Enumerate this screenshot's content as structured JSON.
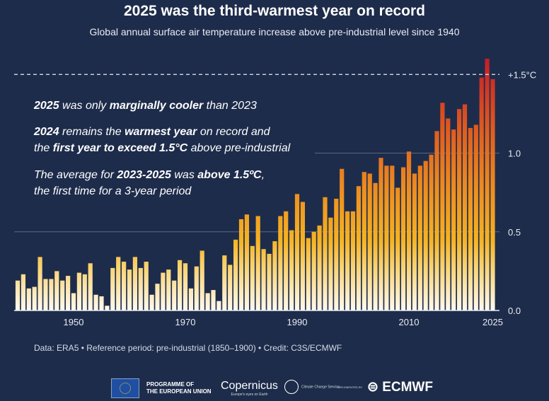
{
  "title": "2025 was the third-warmest year on record",
  "subtitle": "Global annual surface air temperature increase above pre-industrial level since 1940",
  "annotations": {
    "l1": [
      "2025",
      " was only ",
      "marginally cooler",
      " than 2023"
    ],
    "l2": [
      "2024",
      " remains the ",
      "warmest year",
      " on record and"
    ],
    "l3": [
      "the ",
      "first year to exceed 1.5°C",
      " above pre-industrial"
    ],
    "l4": [
      "The average for ",
      "2023-2025",
      " was ",
      "above 1.5ºC",
      ","
    ],
    "l5": [
      "the first time for a 3-year period"
    ]
  },
  "footer": "Data: ERA5 • Reference period: pre-industrial (1850–1900) • Credit: C3S/ECMWF",
  "logos": {
    "eu": "PROGRAMME OF THE EUROPEAN UNION",
    "eu_line1": "PROGRAMME OF",
    "eu_line2": "THE EUROPEAN UNION",
    "copernicus": "Copernicus",
    "copernicus_tagline": "Europe's eyes on Earth",
    "c3s": "Climate Change Service",
    "implemented_by": "IMPLEMENTED BY",
    "ecmwf": "ECMWF"
  },
  "colors": {
    "background": "#1e2c4b",
    "bar_low": "#fff8e6",
    "bar_mid": "#f5b020",
    "bar_high": "#c41e2a",
    "text": "#ffffff"
  },
  "chart_data": {
    "type": "bar",
    "title": "2025 was the third-warmest year on record",
    "subtitle": "Global annual surface air temperature increase above pre-industrial level since 1940",
    "x": [
      1940,
      1941,
      1942,
      1943,
      1944,
      1945,
      1946,
      1947,
      1948,
      1949,
      1950,
      1951,
      1952,
      1953,
      1954,
      1955,
      1956,
      1957,
      1958,
      1959,
      1960,
      1961,
      1962,
      1963,
      1964,
      1965,
      1966,
      1967,
      1968,
      1969,
      1970,
      1971,
      1972,
      1973,
      1974,
      1975,
      1976,
      1977,
      1978,
      1979,
      1980,
      1981,
      1982,
      1983,
      1984,
      1985,
      1986,
      1987,
      1988,
      1989,
      1990,
      1991,
      1992,
      1993,
      1994,
      1995,
      1996,
      1997,
      1998,
      1999,
      2000,
      2001,
      2002,
      2003,
      2004,
      2005,
      2006,
      2007,
      2008,
      2009,
      2010,
      2011,
      2012,
      2013,
      2014,
      2015,
      2016,
      2017,
      2018,
      2019,
      2020,
      2021,
      2022,
      2023,
      2024,
      2025
    ],
    "values": [
      0.19,
      0.23,
      0.14,
      0.15,
      0.34,
      0.2,
      0.2,
      0.25,
      0.19,
      0.22,
      0.11,
      0.24,
      0.23,
      0.3,
      0.1,
      0.09,
      0.03,
      0.27,
      0.34,
      0.31,
      0.26,
      0.34,
      0.27,
      0.31,
      0.1,
      0.17,
      0.24,
      0.26,
      0.19,
      0.32,
      0.3,
      0.14,
      0.28,
      0.38,
      0.11,
      0.13,
      0.06,
      0.35,
      0.29,
      0.45,
      0.58,
      0.61,
      0.41,
      0.6,
      0.39,
      0.36,
      0.44,
      0.6,
      0.63,
      0.51,
      0.74,
      0.69,
      0.46,
      0.5,
      0.54,
      0.72,
      0.59,
      0.71,
      0.9,
      0.63,
      0.63,
      0.79,
      0.88,
      0.87,
      0.81,
      0.97,
      0.92,
      0.92,
      0.78,
      0.91,
      1.01,
      0.87,
      0.92,
      0.95,
      0.99,
      1.14,
      1.32,
      1.22,
      1.15,
      1.28,
      1.31,
      1.16,
      1.18,
      1.48,
      1.6,
      1.47
    ],
    "xticks": [
      "1950",
      "1970",
      "1990",
      "2010",
      "2025"
    ],
    "yticks": [
      "0.0",
      "0.5",
      "1.0"
    ],
    "threshold": {
      "value": 1.5,
      "label": "+1.5°C",
      "style": "dashed"
    },
    "ylim": [
      0,
      1.65
    ],
    "xlabel": "",
    "ylabel": "",
    "grid": true
  }
}
